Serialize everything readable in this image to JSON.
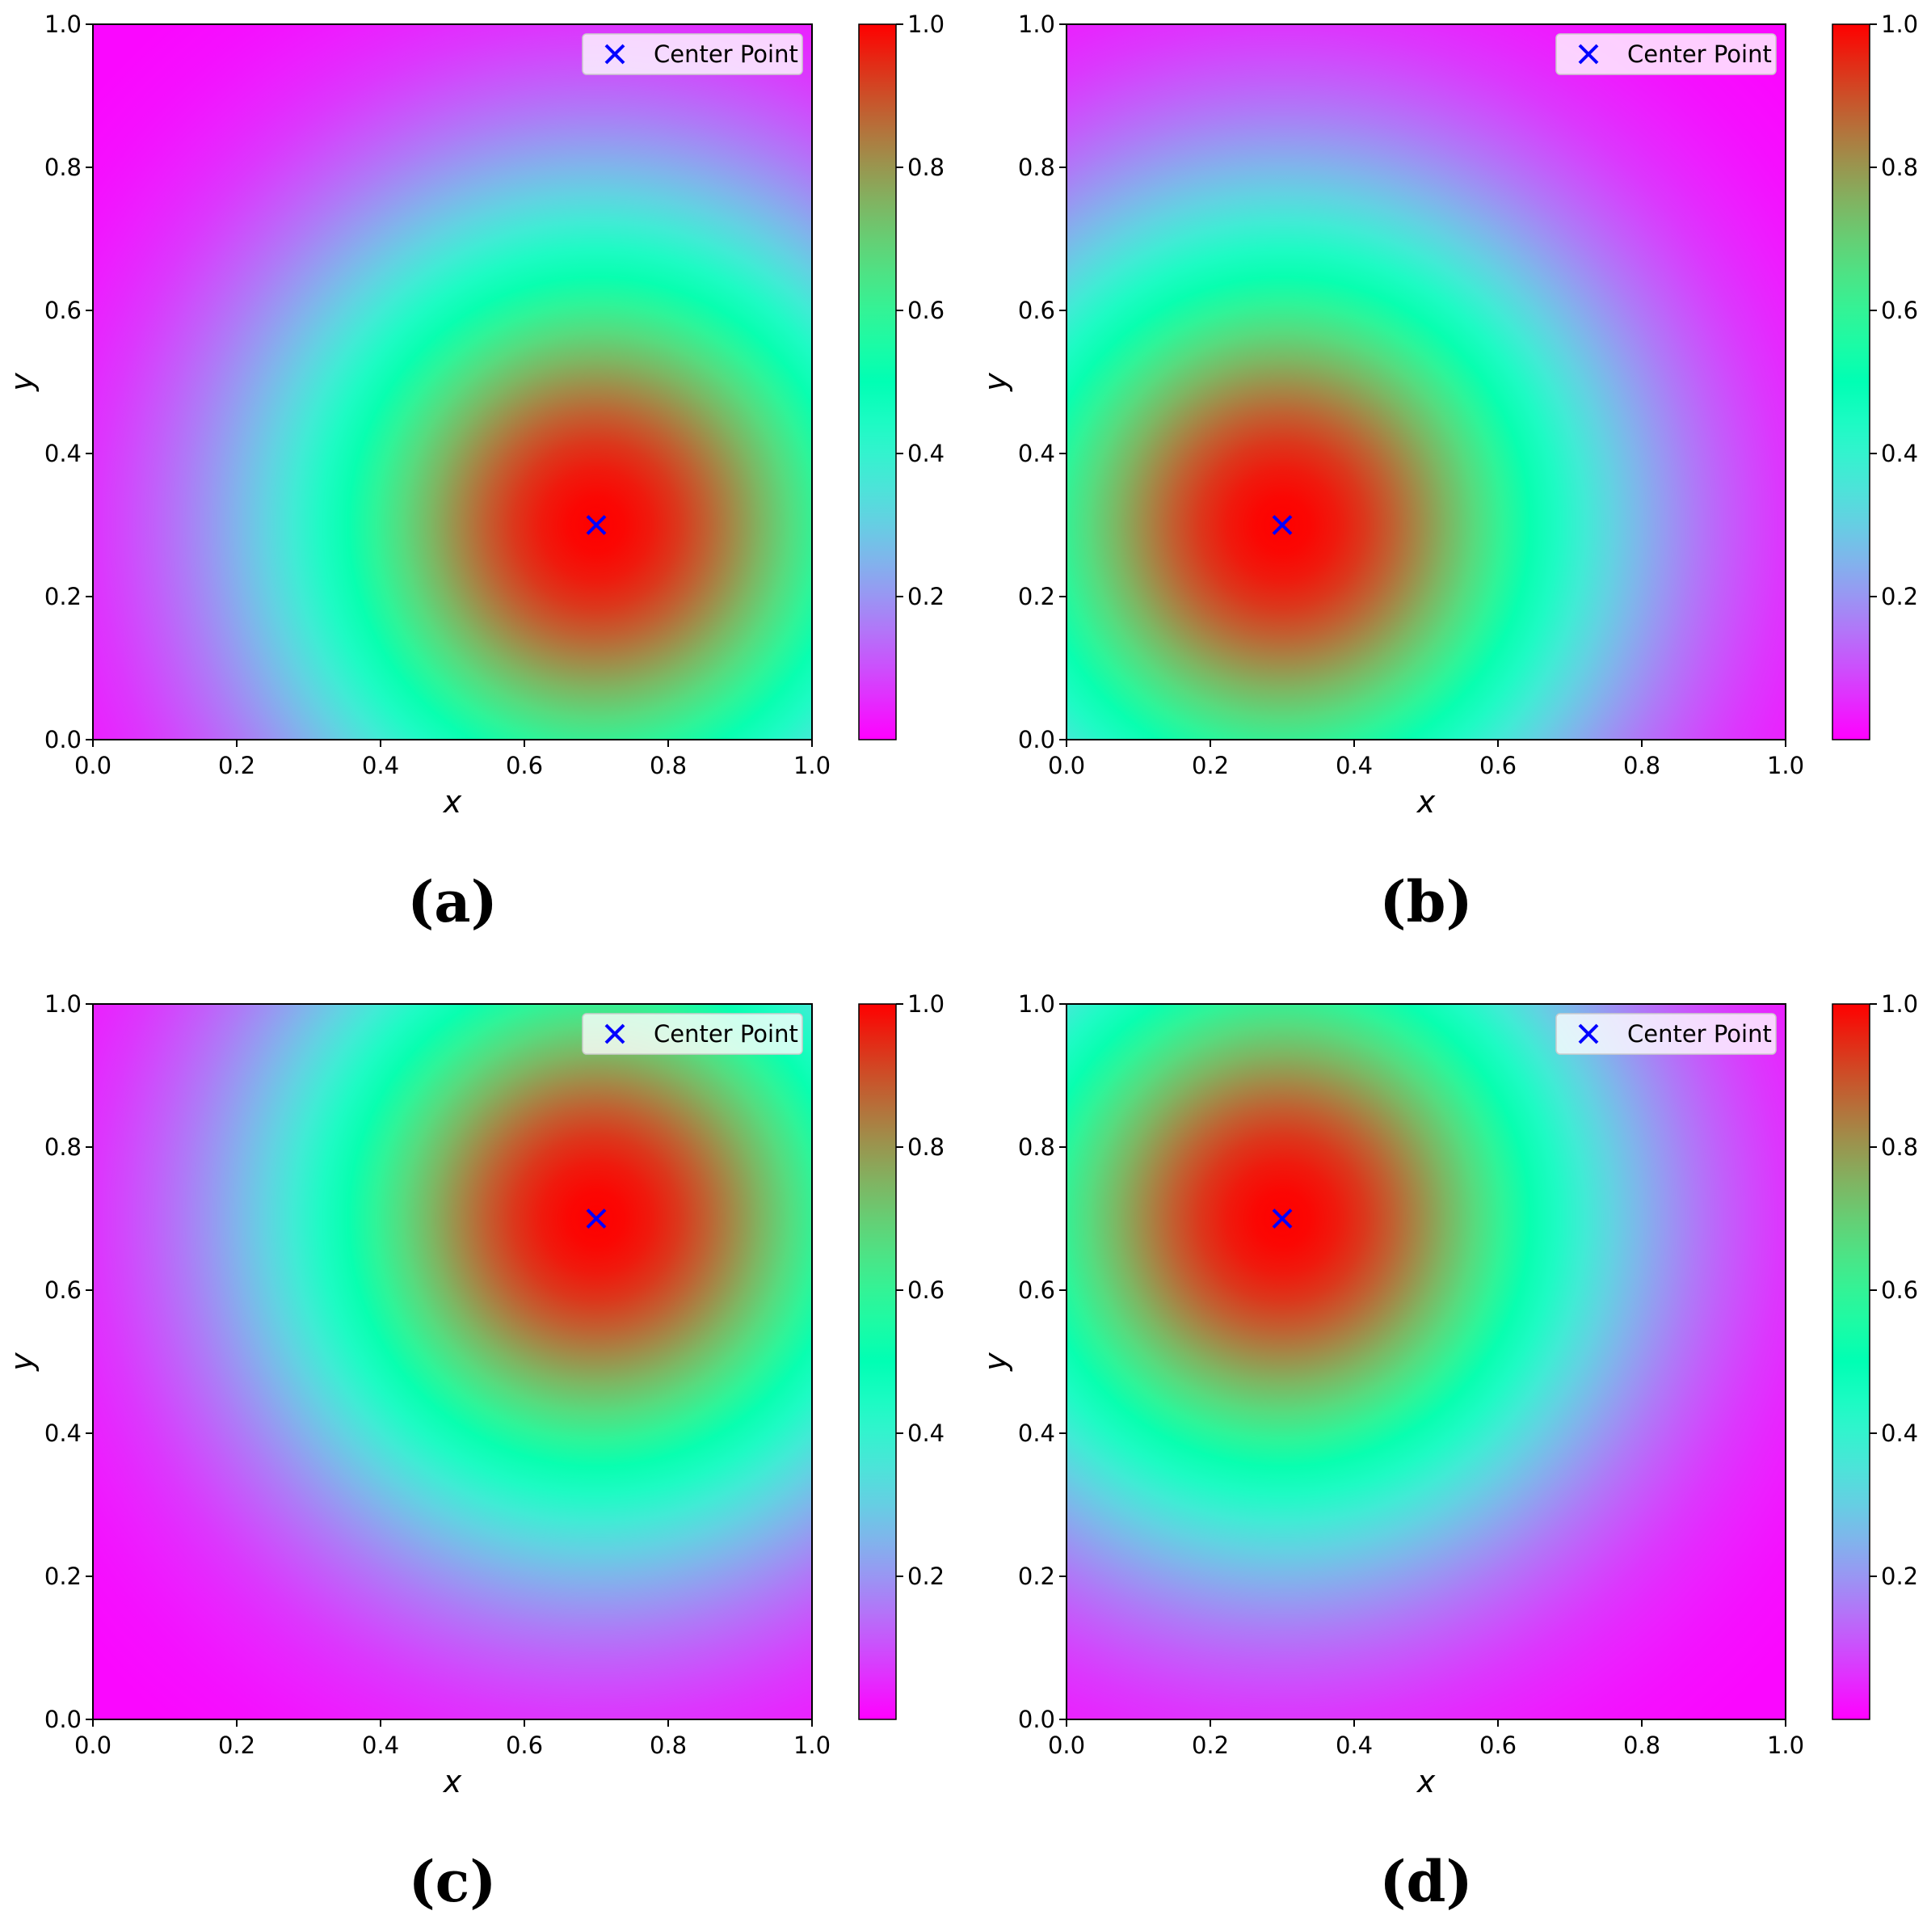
{
  "chart_data": [
    {
      "type": "heatmap",
      "panel": "(a)",
      "xlabel": "x",
      "ylabel": "y",
      "xlim": [
        0.0,
        1.0
      ],
      "ylim": [
        0.0,
        1.0
      ],
      "x_ticks": [
        "0.0",
        "0.2",
        "0.4",
        "0.6",
        "0.8",
        "1.0"
      ],
      "y_ticks": [
        "0.0",
        "0.2",
        "0.4",
        "0.6",
        "0.8",
        "1.0"
      ],
      "center": [
        0.7,
        0.3
      ],
      "colorbar": {
        "range": [
          0.0,
          1.0
        ],
        "ticks": [
          "0.2",
          "0.4",
          "0.6",
          "0.8",
          "1.0"
        ],
        "colormap": "rainbow"
      },
      "legend": {
        "label": "Center Point",
        "placement": "top-right"
      },
      "grid": false
    },
    {
      "type": "heatmap",
      "panel": "(b)",
      "xlabel": "x",
      "ylabel": "y",
      "xlim": [
        0.0,
        1.0
      ],
      "ylim": [
        0.0,
        1.0
      ],
      "x_ticks": [
        "0.0",
        "0.2",
        "0.4",
        "0.6",
        "0.8",
        "1.0"
      ],
      "y_ticks": [
        "0.0",
        "0.2",
        "0.4",
        "0.6",
        "0.8",
        "1.0"
      ],
      "center": [
        0.3,
        0.3
      ],
      "colorbar": {
        "range": [
          0.0,
          1.0
        ],
        "ticks": [
          "0.2",
          "0.4",
          "0.6",
          "0.8",
          "1.0"
        ],
        "colormap": "rainbow"
      },
      "legend": {
        "label": "Center Point",
        "placement": "top-right"
      },
      "grid": false
    },
    {
      "type": "heatmap",
      "panel": "(c)",
      "xlabel": "x",
      "ylabel": "y",
      "xlim": [
        0.0,
        1.0
      ],
      "ylim": [
        0.0,
        1.0
      ],
      "x_ticks": [
        "0.0",
        "0.2",
        "0.4",
        "0.6",
        "0.8",
        "1.0"
      ],
      "y_ticks": [
        "0.0",
        "0.2",
        "0.4",
        "0.6",
        "0.8",
        "1.0"
      ],
      "center": [
        0.7,
        0.7
      ],
      "colorbar": {
        "range": [
          0.0,
          1.0
        ],
        "ticks": [
          "0.2",
          "0.4",
          "0.6",
          "0.8",
          "1.0"
        ],
        "colormap": "rainbow"
      },
      "legend": {
        "label": "Center Point",
        "placement": "top-right"
      },
      "grid": false
    },
    {
      "type": "heatmap",
      "panel": "(d)",
      "xlabel": "x",
      "ylabel": "y",
      "xlim": [
        0.0,
        1.0
      ],
      "ylim": [
        0.0,
        1.0
      ],
      "x_ticks": [
        "0.0",
        "0.2",
        "0.4",
        "0.6",
        "0.8",
        "1.0"
      ],
      "y_ticks": [
        "0.0",
        "0.2",
        "0.4",
        "0.6",
        "0.8",
        "1.0"
      ],
      "center": [
        0.3,
        0.7
      ],
      "colorbar": {
        "range": [
          0.0,
          1.0
        ],
        "ticks": [
          "0.2",
          "0.4",
          "0.6",
          "0.8",
          "1.0"
        ],
        "colormap": "rainbow"
      },
      "legend": {
        "label": "Center Point",
        "placement": "top-right"
      },
      "grid": false
    }
  ],
  "colors": {
    "marker": "#0000ff",
    "axes": "#000000",
    "legend_background": "#ffffff"
  }
}
